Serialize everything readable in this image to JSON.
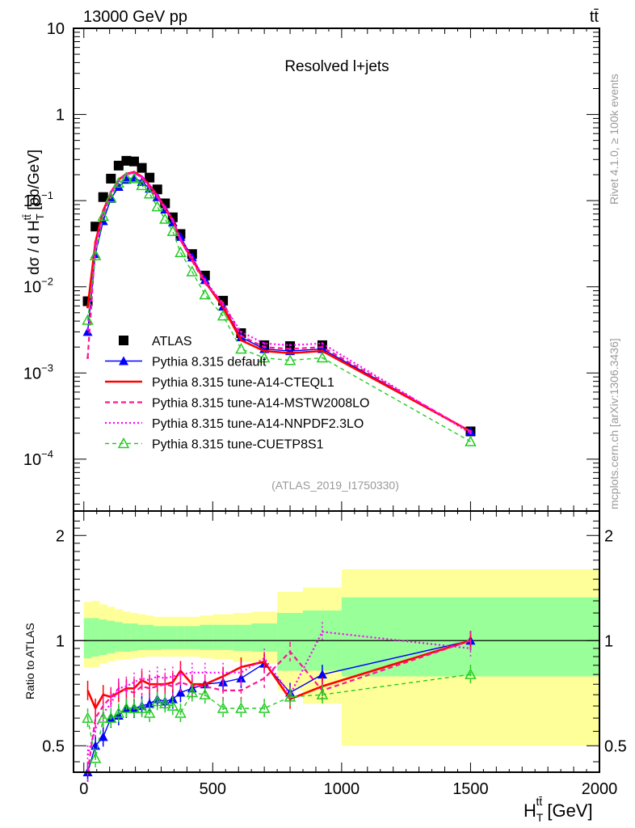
{
  "chart_data": [
    {
      "panel": "main",
      "type": "line",
      "title": "Resolved l+jets",
      "top_left_label": "13000 GeV pp",
      "top_right_label": "tt̄",
      "analysis_label": "(ATLAS_2019_I1750330)",
      "side_label_top": "Rivet 4.1.0, ≥ 100k events",
      "side_label_bottom": "mcplots.cern.ch [arXiv:1306.3436]",
      "ylabel": "dσ / d H_T^{tt̄} [pb/GeV]",
      "ylabel_main": "dσ / d H",
      "ylabel_sup": "tt̄",
      "ylabel_sub": "T",
      "ylabel_units": " [pb/GeV]",
      "yscale": "log",
      "ylim": [
        2.5e-05,
        10
      ],
      "xlim": [
        -40,
        2000
      ],
      "y_ticks": [
        {
          "value": 10,
          "label": "10",
          "exp": ""
        },
        {
          "value": 1,
          "label": "1",
          "exp": ""
        },
        {
          "value": 0.1,
          "label": "10",
          "exp": "−1"
        },
        {
          "value": 0.01,
          "label": "10",
          "exp": "−2"
        },
        {
          "value": 0.001,
          "label": "10",
          "exp": "−3"
        },
        {
          "value": 0.0001,
          "label": "10",
          "exp": "−4"
        }
      ],
      "legend": {
        "placement": "bottom-left",
        "entries": [
          {
            "label": "ATLAS",
            "color": "#000000",
            "style": "square-marker"
          },
          {
            "label": "Pythia 8.315 default",
            "color": "#0000ff",
            "style": "solid-triangle"
          },
          {
            "label": "Pythia 8.315 tune-A14-CTEQL1",
            "color": "#ff0000",
            "style": "solid-thick"
          },
          {
            "label": "Pythia 8.315 tune-A14-MSTW2008LO",
            "color": "#ff1493",
            "style": "dashed"
          },
          {
            "label": "Pythia 8.315 tune-A14-NNPDF2.3LO",
            "color": "#ff00ff",
            "style": "dotted"
          },
          {
            "label": "Pythia 8.315 tune-CUETP8S1",
            "color": "#00c000",
            "style": "dashed-open-triangle"
          }
        ]
      },
      "x": [
        15,
        45,
        75,
        105,
        135,
        165,
        195,
        225,
        255,
        285,
        315,
        345,
        375,
        420,
        470,
        540,
        610,
        700,
        800,
        925,
        1500
      ],
      "series": [
        {
          "name": "ATLAS",
          "values": [
            0.0068,
            0.05,
            0.11,
            0.18,
            0.255,
            0.29,
            0.285,
            0.24,
            0.185,
            0.135,
            0.093,
            0.064,
            0.041,
            0.024,
            0.0135,
            0.0069,
            0.0029,
            0.0021,
            0.00205,
            0.0021,
            0.00021
          ]
        },
        {
          "name": "Pythia 8.315 default",
          "values": [
            0.003,
            0.024,
            0.058,
            0.105,
            0.145,
            0.175,
            0.185,
            0.165,
            0.138,
            0.11,
            0.079,
            0.056,
            0.038,
            0.022,
            0.012,
            0.0059,
            0.0026,
            0.0019,
            0.0018,
            0.0019,
            0.00021
          ]
        },
        {
          "name": "Pythia 8.315 tune-A14-CTEQL1",
          "values": [
            0.0058,
            0.033,
            0.076,
            0.125,
            0.175,
            0.205,
            0.215,
            0.19,
            0.15,
            0.115,
            0.082,
            0.06,
            0.035,
            0.021,
            0.0115,
            0.0058,
            0.0024,
            0.0018,
            0.0017,
            0.0018,
            0.00021
          ]
        },
        {
          "name": "Pythia 8.315 tune-A14-MSTW2008LO",
          "values": [
            0.0015,
            0.03,
            0.07,
            0.125,
            0.175,
            0.205,
            0.21,
            0.185,
            0.14,
            0.11,
            0.08,
            0.058,
            0.035,
            0.02,
            0.011,
            0.0065,
            0.0027,
            0.002,
            0.0019,
            0.002,
            0.00021
          ]
        },
        {
          "name": "Pythia 8.315 tune-A14-NNPDF2.3LO",
          "values": [
            0.0032,
            0.028,
            0.068,
            0.118,
            0.17,
            0.2,
            0.208,
            0.19,
            0.15,
            0.115,
            0.085,
            0.06,
            0.036,
            0.022,
            0.012,
            0.0062,
            0.003,
            0.0022,
            0.0021,
            0.0022,
            0.0002
          ]
        },
        {
          "name": "Pythia 8.315 tune-CUETP8S1",
          "values": [
            0.0041,
            0.023,
            0.066,
            0.108,
            0.16,
            0.185,
            0.18,
            0.15,
            0.12,
            0.085,
            0.061,
            0.044,
            0.025,
            0.015,
            0.0081,
            0.0046,
            0.0019,
            0.0015,
            0.0014,
            0.0015,
            0.00016
          ]
        }
      ]
    },
    {
      "panel": "ratio",
      "type": "line",
      "ylabel": "Ratio to ATLAS",
      "xlabel": "H_T^{tt̄} [GeV]",
      "xlabel_main": "H",
      "xlabel_sub": "T",
      "xlabel_sup": "tt̄",
      "xlabel_units": " [GeV]",
      "yscale": "log",
      "ylim": [
        0.42,
        2.35
      ],
      "xlim": [
        -40,
        2000
      ],
      "x_ticks": [
        0,
        500,
        1000,
        1500,
        2000
      ],
      "x_tick_labels": [
        "0",
        "500",
        "1000",
        "1500",
        "2000"
      ],
      "y_ticks": [
        0.5,
        1,
        2
      ],
      "y_tick_labels": [
        "0.5",
        "1",
        "2"
      ],
      "reference_line": 1,
      "bands": {
        "bin_edges": [
          0,
          30,
          60,
          90,
          120,
          150,
          180,
          210,
          240,
          270,
          300,
          330,
          360,
          390,
          450,
          500,
          580,
          650,
          750,
          850,
          1000,
          2000
        ],
        "yellow_low": [
          0.84,
          0.84,
          0.86,
          0.87,
          0.88,
          0.885,
          0.89,
          0.895,
          0.9,
          0.9,
          0.9,
          0.9,
          0.9,
          0.9,
          0.89,
          0.885,
          0.87,
          0.86,
          0.72,
          0.66,
          0.5
        ],
        "yellow_high": [
          1.29,
          1.3,
          1.27,
          1.25,
          1.23,
          1.21,
          1.2,
          1.19,
          1.18,
          1.17,
          1.17,
          1.17,
          1.17,
          1.17,
          1.18,
          1.19,
          1.2,
          1.21,
          1.38,
          1.42,
          1.6
        ],
        "green_low": [
          0.89,
          0.9,
          0.91,
          0.92,
          0.93,
          0.93,
          0.935,
          0.94,
          0.94,
          0.94,
          0.945,
          0.945,
          0.945,
          0.945,
          0.94,
          0.94,
          0.935,
          0.93,
          0.82,
          0.82,
          0.79
        ],
        "green_high": [
          1.16,
          1.16,
          1.15,
          1.14,
          1.13,
          1.12,
          1.12,
          1.11,
          1.11,
          1.1,
          1.1,
          1.1,
          1.1,
          1.1,
          1.11,
          1.11,
          1.11,
          1.12,
          1.2,
          1.22,
          1.33
        ],
        "yellow_color": "#ffff99",
        "green_color": "#99ff99"
      },
      "x": [
        15,
        45,
        75,
        105,
        135,
        165,
        195,
        225,
        255,
        285,
        315,
        345,
        375,
        420,
        470,
        540,
        610,
        700,
        800,
        925,
        1500
      ],
      "series": [
        {
          "name": "Pythia 8.315 default",
          "values": [
            0.42,
            0.5,
            0.53,
            0.6,
            0.61,
            0.64,
            0.64,
            0.65,
            0.66,
            0.68,
            0.67,
            0.68,
            0.71,
            0.73,
            0.75,
            0.76,
            0.78,
            0.86,
            0.71,
            0.8,
            1.0
          ]
        },
        {
          "name": "Pythia 8.315 tune-A14-CTEQL1",
          "values": [
            0.72,
            0.64,
            0.7,
            0.69,
            0.71,
            0.73,
            0.73,
            0.77,
            0.75,
            0.75,
            0.75,
            0.76,
            0.82,
            0.75,
            0.75,
            0.79,
            0.84,
            0.87,
            0.68,
            0.74,
            1.0
          ]
        },
        {
          "name": "Pythia 8.315 tune-A14-MSTW2008LO",
          "values": [
            0.22,
            0.6,
            0.65,
            0.69,
            0.73,
            0.72,
            0.71,
            0.74,
            0.73,
            0.74,
            0.75,
            0.74,
            0.76,
            0.74,
            0.74,
            0.72,
            0.72,
            0.78,
            0.93,
            0.72,
            1.0
          ]
        },
        {
          "name": "Pythia 8.315 tune-A14-NNPDF2.3LO",
          "values": [
            0.47,
            0.56,
            0.62,
            0.66,
            0.73,
            0.74,
            0.76,
            0.78,
            0.77,
            0.79,
            0.78,
            0.79,
            0.8,
            0.81,
            0.81,
            0.81,
            0.81,
            0.89,
            0.7,
            1.06,
            0.95
          ]
        },
        {
          "name": "Pythia 8.315 tune-CUETP8S1",
          "values": [
            0.6,
            0.46,
            0.6,
            0.6,
            0.62,
            0.64,
            0.64,
            0.64,
            0.62,
            0.67,
            0.66,
            0.65,
            0.62,
            0.71,
            0.7,
            0.64,
            0.64,
            0.64,
            0.69,
            0.7,
            0.8
          ]
        }
      ]
    }
  ]
}
